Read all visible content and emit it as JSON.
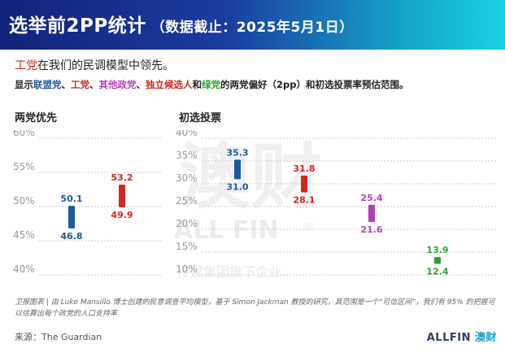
{
  "header": {
    "title": "选举前2PP统计",
    "subtitle": "（数据截止：2025年5月1日）"
  },
  "lede": {
    "party": "工党",
    "rest": "在我们的民调模型中领先。"
  },
  "subline": {
    "t1": "显示",
    "coalition": "联盟党",
    "sep1": "、",
    "labor": "工党",
    "sep2": "、",
    "others": "其他政党",
    "sep3": "、",
    "independents": "独立候选人",
    "t2": "和",
    "greens": "绿党",
    "t3": "的两党偏好（2pp）和初选投票率预估范围。"
  },
  "panels": {
    "left_title": "两党优先",
    "right_title": "初选投票"
  },
  "colors": {
    "coalition": "#1c5aa0",
    "labor": "#d0281e",
    "others": "#b23fb8",
    "greens": "#2aa52c",
    "grid": "#cccccc",
    "tick": "#999999"
  },
  "chart_data": [
    {
      "type": "range",
      "title": "两党优先",
      "yticks": [
        "60%",
        "55%",
        "50%",
        "45%",
        "40%"
      ],
      "ylim": [
        40,
        60
      ],
      "series": [
        {
          "key": "coalition",
          "low": 46.8,
          "high": 50.1,
          "low_label": "46.8",
          "high_label": "50.1"
        },
        {
          "key": "labor",
          "low": 49.9,
          "high": 53.2,
          "low_label": "49.9",
          "high_label": "53.2"
        }
      ]
    },
    {
      "type": "range",
      "title": "初选投票",
      "yticks": [
        "40%",
        "35%",
        "30%",
        "25%",
        "20%",
        "15%",
        "10%"
      ],
      "ylim": [
        10,
        40
      ],
      "series": [
        {
          "key": "coalition",
          "low": 31.0,
          "high": 35.3,
          "low_label": "31.0",
          "high_label": "35.3"
        },
        {
          "key": "labor",
          "low": 28.1,
          "high": 31.8,
          "low_label": "28.1",
          "high_label": "31.8"
        },
        {
          "key": "others",
          "low": 21.6,
          "high": 25.4,
          "low_label": "21.6",
          "high_label": "25.4"
        },
        {
          "key": "greens",
          "low": 12.4,
          "high": 13.9,
          "low_label": "12.4",
          "high_label": "13.9"
        }
      ]
    }
  ],
  "watermark": {
    "big": "澳财",
    "latin": "ALL FIN",
    "reg": "®",
    "tagline": "传媒集团旗下企业"
  },
  "footnote": "卫报图表 | 由 Luke Mansillo 博士创建的民意调查平均模型，基于 Simon Jackman 教授的研究，其范围是一个“可信区间”，我们有 95% 的把握可以估算出每个政党的人口支持率",
  "source": "来源：The Guardian",
  "brand": {
    "latin": "ALLFIN",
    "cn": "澳财"
  }
}
